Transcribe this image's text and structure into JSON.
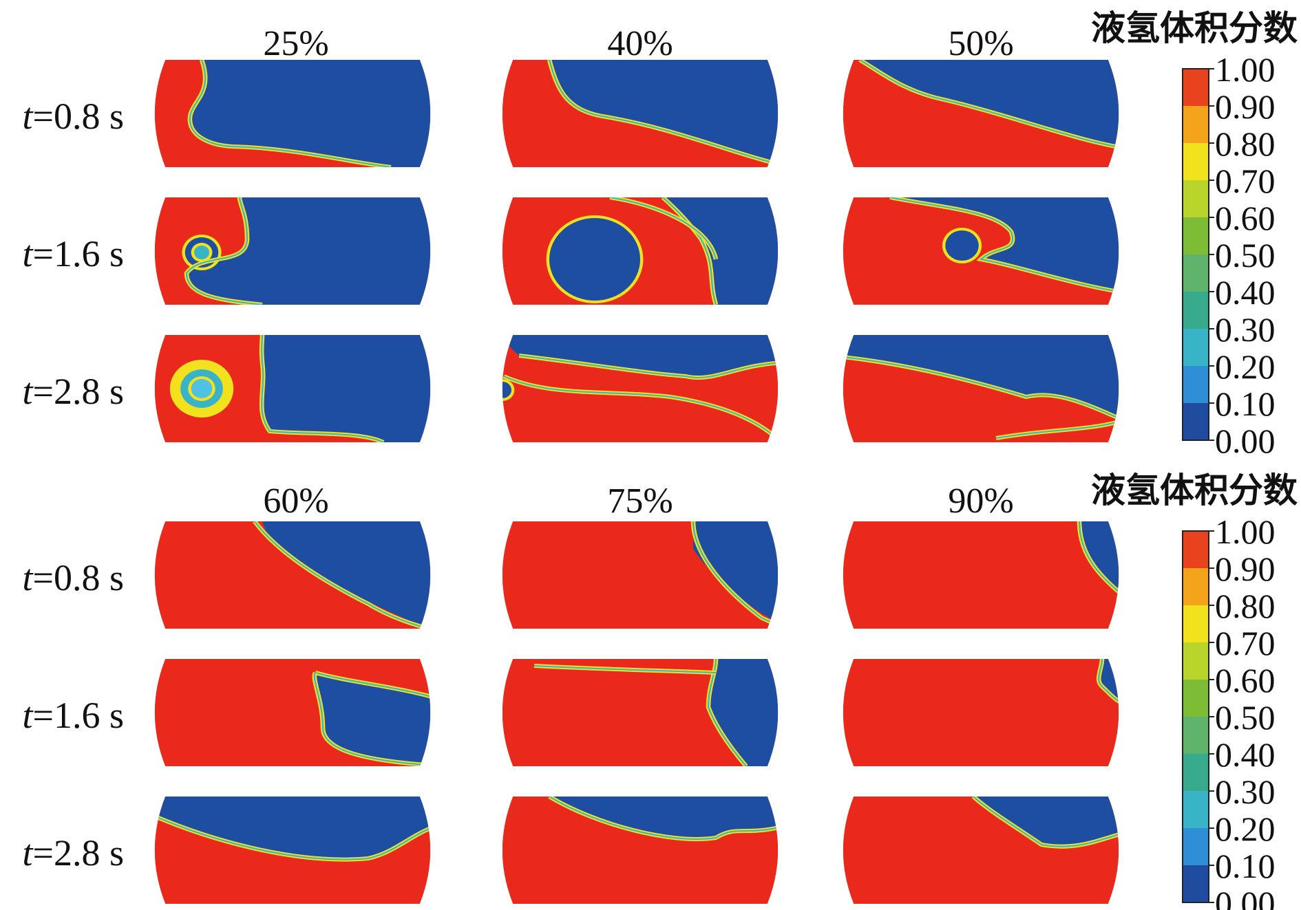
{
  "colorbar_title": "液氢体积分数",
  "colorbar_ticks": [
    "1.00",
    "0.90",
    "0.80",
    "0.70",
    "0.60",
    "0.50",
    "0.40",
    "0.30",
    "0.20",
    "0.10",
    "0.00"
  ],
  "colorbar_colors": [
    "#e8421e",
    "#f4a41a",
    "#f2e21e",
    "#b9d52c",
    "#7cbd35",
    "#5fb36a",
    "#38aa8c",
    "#39b3c7",
    "#2f8fd6",
    "#1f4c9e"
  ],
  "time_labels": [
    {
      "var": "t",
      "rest": "=0.8 s"
    },
    {
      "var": "t",
      "rest": "=1.6 s"
    },
    {
      "var": "t",
      "rest": "=2.8 s"
    }
  ],
  "groups": [
    {
      "fills": [
        "25%",
        "40%",
        "50%"
      ]
    },
    {
      "fills": [
        "60%",
        "75%",
        "90%"
      ]
    }
  ],
  "phase_colors": {
    "liquid": "#e8291c",
    "vapor": "#1e4ea1",
    "interface": "#f2e21e",
    "mid": "#39b3c7"
  }
}
